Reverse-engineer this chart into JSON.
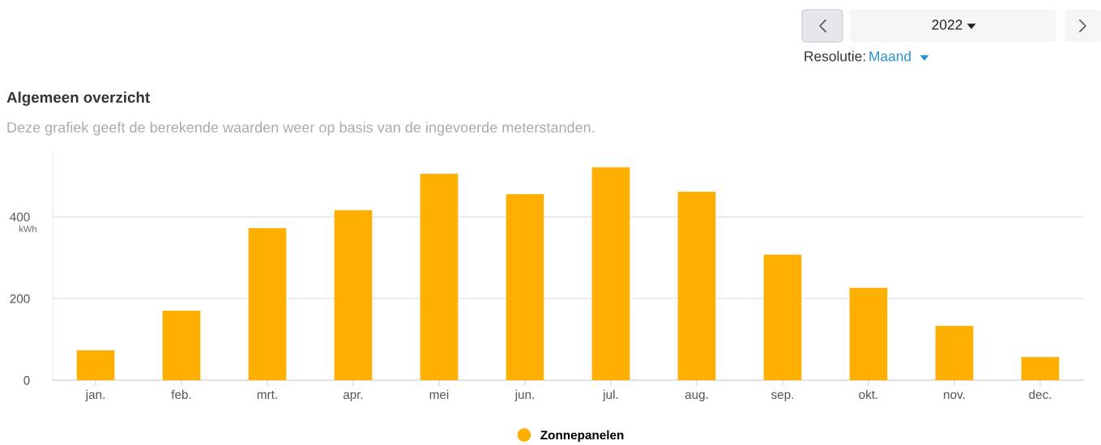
{
  "chart_data": {
    "type": "bar",
    "title": "Algemeen overzicht",
    "subtitle": "Deze grafiek geeft de berekende waarden weer op basis van de ingevoerde meterstanden.",
    "ylabel": "kWh",
    "categories": [
      "jan.",
      "feb.",
      "mrt.",
      "apr.",
      "mei",
      "jun.",
      "jul.",
      "aug.",
      "sep.",
      "okt.",
      "nov.",
      "dec."
    ],
    "series": [
      {
        "name": "Zonnepanelen",
        "color": "#ffaf00",
        "values": [
          73,
          170,
          372,
          416,
          505,
          455,
          521,
          461,
          307,
          226,
          133,
          57
        ]
      }
    ],
    "ylim": [
      0,
      560
    ],
    "yticks": [
      0,
      200,
      400
    ],
    "grid": "y",
    "legend": "bottom",
    "annotations": [
      "2022",
      "Resolutie:",
      "Maand"
    ]
  }
}
